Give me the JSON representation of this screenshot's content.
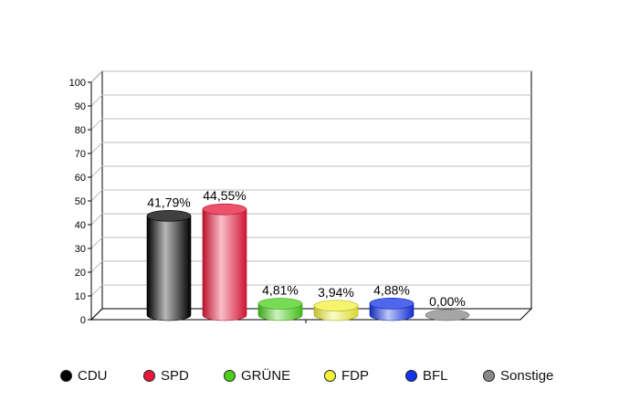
{
  "chart_data": {
    "type": "bar",
    "categories": [
      "CDU",
      "SPD",
      "GRÜNE",
      "FDP",
      "BFL",
      "Sonstige"
    ],
    "values": [
      41.79,
      44.55,
      4.81,
      3.94,
      4.88,
      0.0
    ],
    "value_labels": [
      "41,79%",
      "44,55%",
      "4,81%",
      "3,94%",
      "4,88%",
      "0,00%"
    ],
    "colors": [
      "#000000",
      "#e8173a",
      "#4ad01a",
      "#f2f03a",
      "#1434e8",
      "#888888"
    ],
    "ylim": [
      0,
      100
    ],
    "yticks": [
      "0",
      "10",
      "20",
      "30",
      "40",
      "50",
      "60",
      "70",
      "80",
      "90",
      "100"
    ],
    "grid": true,
    "legend_position": "bottom"
  }
}
